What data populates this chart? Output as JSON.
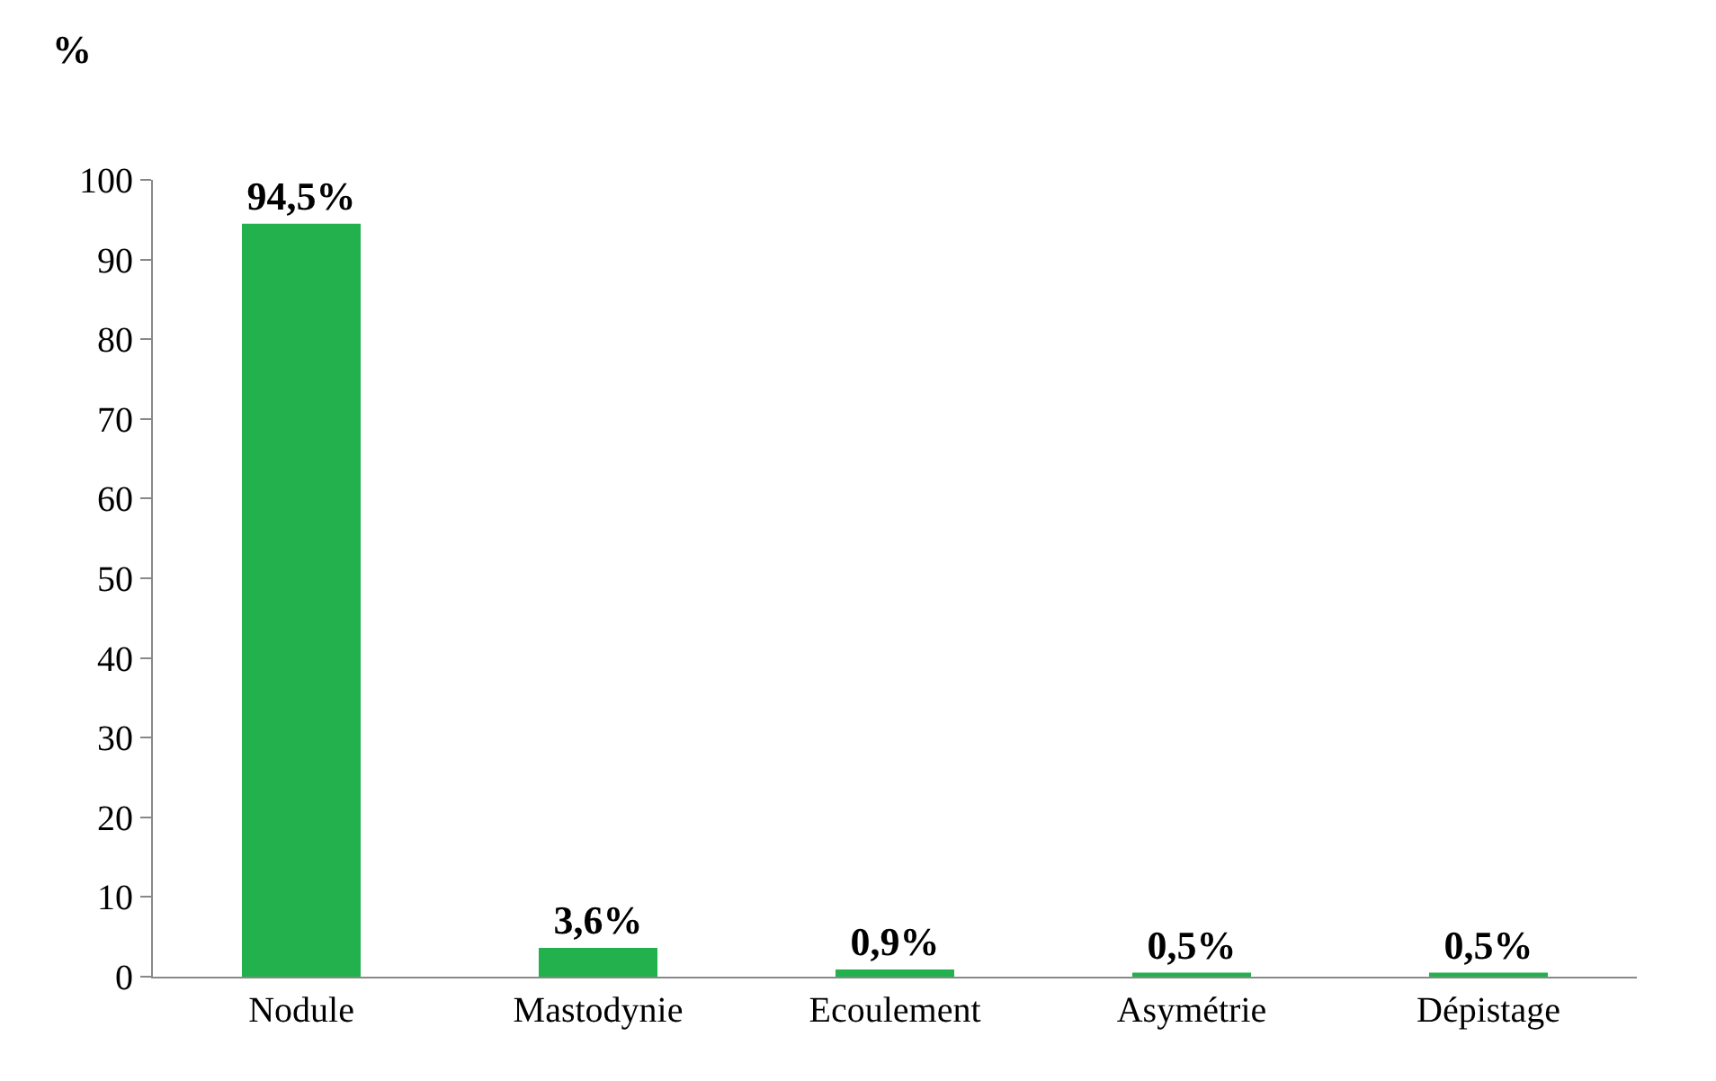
{
  "chart_data": {
    "type": "bar",
    "ylabel": "%",
    "categories": [
      "Nodule",
      "Mastodynie",
      "Ecoulement",
      "Asymétrie",
      "Dépistage"
    ],
    "values": [
      94.5,
      3.6,
      0.9,
      0.5,
      0.5
    ],
    "value_labels": [
      "94,5%",
      "3,6%",
      "0,9%",
      "0,5%",
      "0,5%"
    ],
    "color": "#22b14c",
    "ylim": [
      0,
      100
    ],
    "yticks": [
      0,
      10,
      20,
      30,
      40,
      50,
      60,
      70,
      80,
      90,
      100
    ],
    "grid": false
  }
}
